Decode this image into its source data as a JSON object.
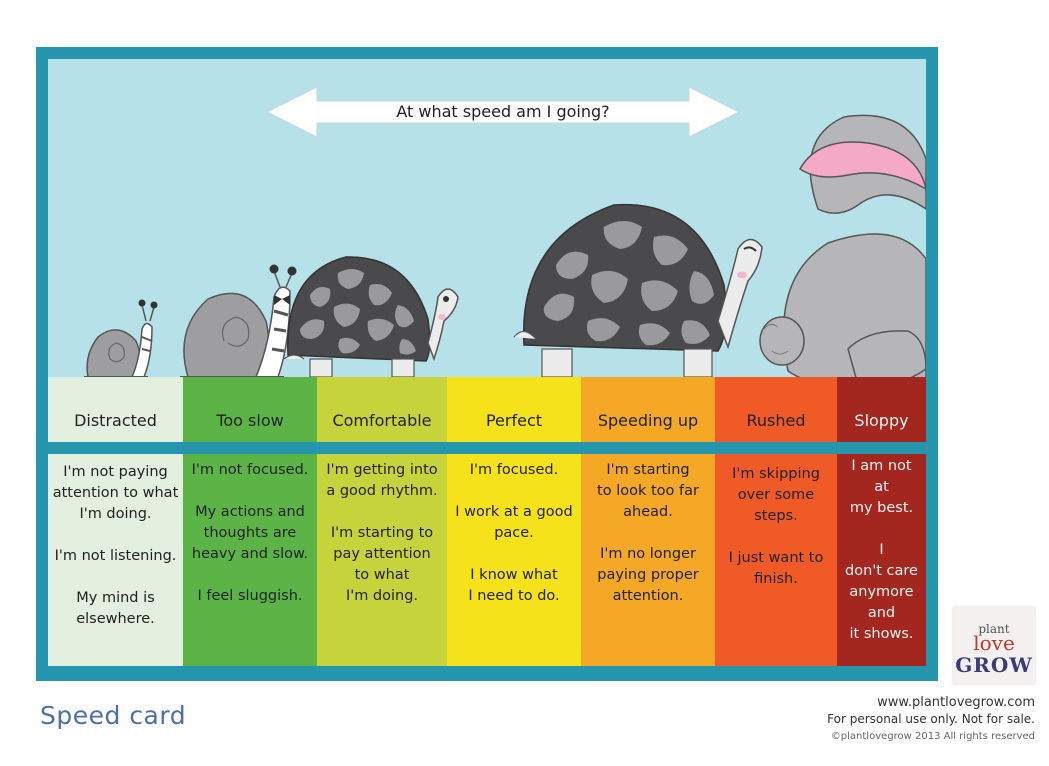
{
  "header": {
    "question": "At what speed am I going?"
  },
  "columns": [
    {
      "name": "Distracted",
      "description": "I'm not paying\nattention to what\nI'm doing.\n\nI'm not listening.\n\nMy mind is\nelsewhere.",
      "color": "#e3efdf"
    },
    {
      "name": "Too slow",
      "description": "I'm not focused.\n\nMy actions and\nthoughts are\nheavy and slow.\n\nI feel sluggish.",
      "color": "#5db446"
    },
    {
      "name": "Comfortable",
      "description": "I'm getting into\na good rhythm.\n\nI'm starting to\npay attention\nto what\nI'm doing.",
      "color": "#c7d33a"
    },
    {
      "name": "Perfect",
      "description": "I'm focused.\n\nI work at a good\npace.\n\nI know what\nI need to do.",
      "color": "#f5e21a"
    },
    {
      "name": "Speeding up",
      "description": "I'm starting\nto look too far\nahead.\n\nI'm no longer\npaying proper\nattention.",
      "color": "#f4a825"
    },
    {
      "name": "Rushed",
      "description": "I'm skipping\nover some\nsteps.\n\nI just want to\nfinish.",
      "color": "#f05a27"
    },
    {
      "name": "Sloppy",
      "description": "I am not\nat\nmy best.\n\nI\ndon't care\nanymore\nand\nit shows.",
      "color": "#a3271f"
    }
  ],
  "card_title": "Speed card",
  "footer": {
    "url": "www.plantlovegrow.com",
    "use": "For personal use only. Not for sale.",
    "copyright": "©plantlovegrow 2013 All rights reserved"
  },
  "logo": {
    "plant": "plant",
    "love": "love",
    "grow": "GROW"
  },
  "colors": {
    "frame": "#2596ad",
    "sky": "#b7e1e8",
    "title": "#4c6fa6"
  },
  "illustrations": [
    "small-snail-icon",
    "large-snail-icon",
    "small-tortoise-icon",
    "large-tortoise-icon",
    "rabbit-icon"
  ]
}
